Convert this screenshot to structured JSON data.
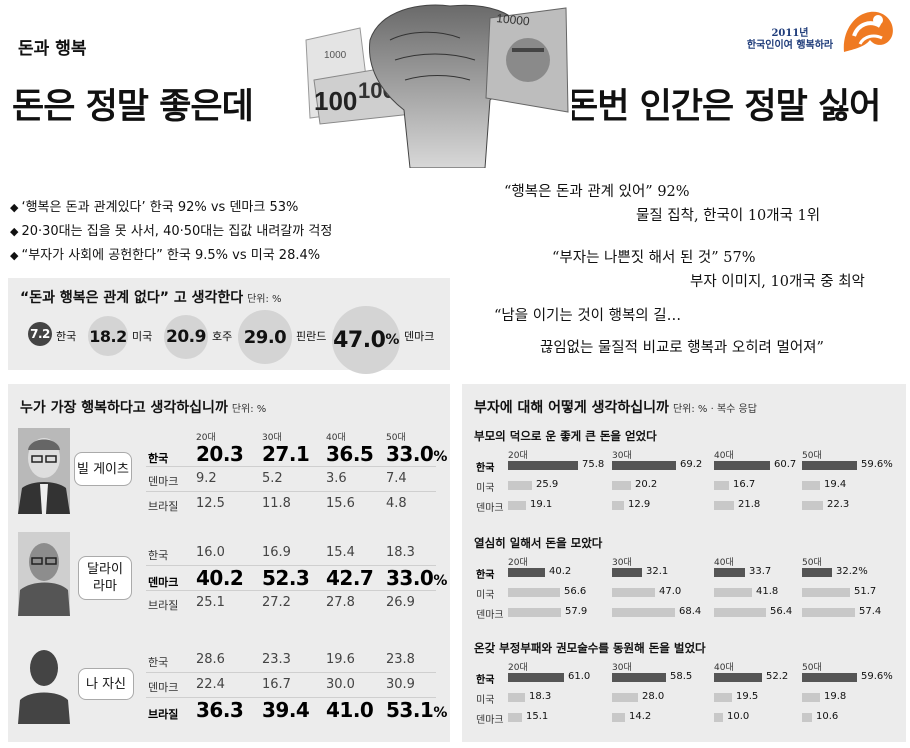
{
  "header": {
    "section": "돈과 행복",
    "headline_left": "돈은 정말 좋은데",
    "headline_right": "돈번 인간은 정말 싫어",
    "logo_text_1": "2011년",
    "logo_text_2": "한국인이여 행복하라",
    "banknote_texts": [
      "1000",
      "10000",
      "100",
      "10000"
    ]
  },
  "bullets": [
    "‘행복은 돈과 관계있다’ 한국 92% vs 덴마크 53%",
    "20·30대는 집을 못 사서, 40·50대는 집값 내려갈까 걱정",
    "“부자가 사회에 공헌한다” 한국 9.5% vs 미국 28.4%"
  ],
  "bullet_marker": "◆",
  "quotes": [
    "“행복은 돈과 관계 있어” 92%",
    "물질 집착, 한국이 10개국 1위",
    "“부자는 나쁜짓 해서 된 것” 57%",
    "부자 이미지, 10개국 중 최악",
    "“남을 이기는 것이 행복의 길…",
    "끊임없는 물질적 비교로 행복과 오히려 멀어져”"
  ],
  "nomoney": {
    "title": "“돈과 행복은 관계 없다” 고 생각한다",
    "unit": "단위: %",
    "items": [
      {
        "value": "7.2",
        "label": "한국"
      },
      {
        "value": "18.2",
        "label": "미국"
      },
      {
        "value": "20.9",
        "label": "호주"
      },
      {
        "value": "29.0",
        "label": "핀란드"
      },
      {
        "value": "47.0",
        "pct": "%",
        "label": "덴마크"
      }
    ]
  },
  "happiest": {
    "title": "누가 가장 행복하다고 생각하십니까",
    "unit": "단위: %",
    "ages": [
      "20대",
      "30대",
      "40대",
      "50대"
    ],
    "people": [
      {
        "name": "빌 게이츠",
        "rows": [
          {
            "country": "한국",
            "values": [
              "20.3",
              "27.1",
              "36.5",
              "33.0"
            ],
            "highlight": true
          },
          {
            "country": "덴마크",
            "values": [
              "9.2",
              "5.2",
              "3.6",
              "7.4"
            ]
          },
          {
            "country": "브라질",
            "values": [
              "12.5",
              "11.8",
              "15.6",
              "4.8"
            ]
          }
        ]
      },
      {
        "name": "달라이 라마",
        "name_1": "달라이",
        "name_2": "라마",
        "rows": [
          {
            "country": "한국",
            "values": [
              "16.0",
              "16.9",
              "15.4",
              "18.3"
            ]
          },
          {
            "country": "덴마크",
            "values": [
              "40.2",
              "52.3",
              "42.7",
              "33.0"
            ],
            "highlight": true
          },
          {
            "country": "브라질",
            "values": [
              "25.1",
              "27.2",
              "27.8",
              "26.9"
            ]
          }
        ]
      },
      {
        "name": "나 자신",
        "rows": [
          {
            "country": "한국",
            "values": [
              "28.6",
              "23.3",
              "19.6",
              "23.8"
            ]
          },
          {
            "country": "덴마크",
            "values": [
              "22.4",
              "16.7",
              "30.0",
              "30.9"
            ]
          },
          {
            "country": "브라질",
            "values": [
              "36.3",
              "39.4",
              "41.0",
              "53.1"
            ],
            "highlight": true
          }
        ]
      }
    ],
    "pct": "%"
  },
  "rich": {
    "title": "부자에 대해 어떻게 생각하십니까",
    "unit": "단위: % · 복수 응답",
    "ages": [
      "20대",
      "30대",
      "40대",
      "50대"
    ],
    "groups": [
      {
        "subtitle": "부모의 덕으로 운 좋게 큰 돈을 얻었다",
        "rows": [
          {
            "country": "한국",
            "values": [
              75.8,
              69.2,
              60.7,
              59.6
            ]
          },
          {
            "country": "미국",
            "values": [
              25.9,
              20.2,
              16.7,
              19.4
            ]
          },
          {
            "country": "덴마크",
            "values": [
              19.1,
              12.9,
              21.8,
              22.3
            ]
          }
        ]
      },
      {
        "subtitle": "열심히 일해서 돈을 모았다",
        "rows": [
          {
            "country": "한국",
            "values": [
              40.2,
              32.1,
              33.7,
              32.2
            ]
          },
          {
            "country": "미국",
            "values": [
              56.6,
              47.0,
              41.8,
              51.7
            ]
          },
          {
            "country": "덴마크",
            "values": [
              57.9,
              68.4,
              56.4,
              57.4
            ]
          }
        ]
      },
      {
        "subtitle": "온갖 부정부패와 권모술수를 동원해 돈을 벌었다",
        "rows": [
          {
            "country": "한국",
            "values": [
              61.0,
              58.5,
              52.2,
              59.6
            ]
          },
          {
            "country": "미국",
            "values": [
              18.3,
              28.0,
              19.5,
              19.8
            ]
          },
          {
            "country": "덴마크",
            "values": [
              15.1,
              14.2,
              10.0,
              10.6
            ]
          }
        ]
      }
    ],
    "value_labels": [
      [
        "75.8",
        "69.2",
        "60.7",
        "59.6%"
      ],
      [
        "25.9",
        "20.2",
        "16.7",
        "19.4"
      ],
      [
        "19.1",
        "12.9",
        "21.8",
        "22.3"
      ],
      [
        "40.2",
        "32.1",
        "33.7",
        "32.2%"
      ],
      [
        "56.6",
        "47.0",
        "41.8",
        "51.7"
      ],
      [
        "57.9",
        "68.4",
        "56.4",
        "57.4"
      ],
      [
        "61.0",
        "58.5",
        "52.2",
        "59.6%"
      ],
      [
        "18.3",
        "28.0",
        "19.5",
        "19.8"
      ],
      [
        "15.1",
        "14.2",
        "10.0",
        "10.6"
      ]
    ]
  }
}
